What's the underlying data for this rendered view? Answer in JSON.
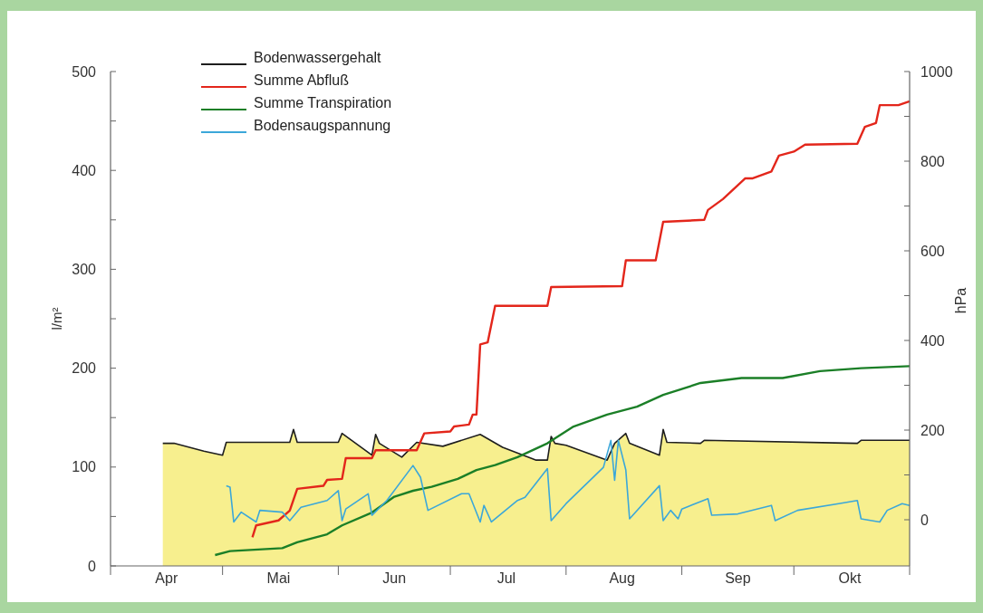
{
  "chart_data": {
    "type": "line",
    "ylabel": "l/m²",
    "y2label": "hPa",
    "xlim": [
      "--04-01",
      "--11-01"
    ],
    "xticks": [
      {
        "value": "--04-01",
        "label": null
      },
      {
        "value": "--04-16",
        "label": "Apr"
      },
      {
        "value": "--05-01",
        "label": null
      },
      {
        "value": "--05-16",
        "label": "Mai"
      },
      {
        "value": "--06-01",
        "label": null
      },
      {
        "value": "--06-16",
        "label": "Jun"
      },
      {
        "value": "--07-01",
        "label": null
      },
      {
        "value": "--07-16",
        "label": "Jul"
      },
      {
        "value": "--08-01",
        "label": null
      },
      {
        "value": "--08-16",
        "label": "Aug"
      },
      {
        "value": "--09-01",
        "label": null
      },
      {
        "value": "--09-16",
        "label": "Sep"
      },
      {
        "value": "--10-01",
        "label": null
      },
      {
        "value": "--10-16",
        "label": "Okt"
      },
      {
        "value": "--11-01",
        "label": null
      }
    ],
    "ylim": [
      0,
      500
    ],
    "yticks": [
      0,
      {
        "value": 50,
        "label": null
      },
      100,
      {
        "value": 150,
        "label": null
      },
      200,
      {
        "value": 250,
        "label": null
      },
      300,
      {
        "value": 350,
        "label": null
      },
      400,
      {
        "value": 450,
        "label": null
      },
      500
    ],
    "y2lim": [
      -103,
      1000
    ],
    "y2ticks": [
      0,
      {
        "value": 100,
        "label": null
      },
      200,
      {
        "value": 300,
        "label": null
      },
      400,
      {
        "value": 500,
        "label": null
      },
      600,
      {
        "value": 700,
        "label": null
      },
      800,
      {
        "value": 900,
        "label": null
      },
      1000
    ],
    "legend": "top left",
    "grid": false,
    "line_style": "solid",
    "marker": "none",
    "series": [
      {
        "name": "Bodenwassergehalt",
        "type": "area",
        "color": "#1e1e1e",
        "x": [
          "--04-15",
          "--04-18",
          "--04-26",
          "--05-01",
          "--05-02",
          "--05-19",
          "--05-20",
          "--05-21",
          "--06-01",
          "--06-02",
          "--06-10",
          "--06-11",
          "--06-12",
          "--06-18",
          "--06-22",
          "--06-29",
          "--07-09",
          "--07-15",
          "--07-24",
          "--07-27",
          "--07-28",
          "--07-29",
          "--08-01",
          "--08-12",
          "--08-14",
          "--08-17",
          "--08-18",
          "--08-26",
          "--08-27",
          "--08-28",
          "--09-06",
          "--09-07",
          "--10-18",
          "--10-19",
          "--11-01"
        ],
        "values": [
          124,
          124,
          116,
          112,
          125,
          125,
          138,
          125,
          125,
          134,
          112,
          133,
          124,
          110,
          125,
          121,
          133,
          120,
          107,
          107,
          131,
          124,
          122,
          107,
          124,
          134,
          124,
          112,
          138,
          125,
          124,
          127,
          124,
          127,
          127
        ]
      },
      {
        "name": "Summe Abfluß",
        "color": "#e3261b",
        "x": [
          "--05-09",
          "--05-10",
          "--05-16",
          "--05-19",
          "--05-21",
          "--05-28",
          "--05-29",
          "--06-02",
          "--06-03",
          "--06-10",
          "--06-11",
          "--06-22",
          "--06-24",
          "--07-01",
          "--07-02",
          "--07-06",
          "--07-07",
          "--07-08",
          "--07-09",
          "--07-11",
          "--07-13",
          "--07-27",
          "--07-28",
          "--08-16",
          "--08-17",
          "--08-25",
          "--08-27",
          "--09-07",
          "--09-08",
          "--09-12",
          "--09-18",
          "--09-20",
          "--09-25",
          "--09-27",
          "--10-01",
          "--10-04",
          "--10-18",
          "--10-20",
          "--10-23",
          "--10-24",
          "--10-29",
          "--11-01"
        ],
        "values": [
          29,
          41,
          46,
          56,
          78,
          81,
          87,
          88,
          109,
          109,
          117,
          117,
          134,
          136,
          141,
          143,
          153,
          153,
          224,
          226,
          263,
          263,
          282,
          283,
          309,
          309,
          348,
          350,
          360,
          371,
          392,
          392,
          399,
          415,
          419,
          426,
          427,
          444,
          448,
          466,
          466,
          470
        ]
      },
      {
        "name": "Summe Transpiration",
        "color": "#1b7f27",
        "x": [
          "--04-29",
          "--05-03",
          "--05-17",
          "--05-21",
          "--05-29",
          "--06-02",
          "--06-10",
          "--06-16",
          "--06-21",
          "--06-26",
          "--07-03",
          "--07-08",
          "--07-13",
          "--07-19",
          "--07-27",
          "--08-03",
          "--08-12",
          "--08-20",
          "--08-27",
          "--09-06",
          "--09-17",
          "--09-28",
          "--10-08",
          "--10-19",
          "--11-01"
        ],
        "values": [
          11,
          15,
          18,
          24,
          32,
          41,
          54,
          70,
          76,
          80,
          88,
          97,
          102,
          110,
          124,
          141,
          153,
          161,
          173,
          185,
          190,
          190,
          197,
          200,
          202
        ]
      },
      {
        "name": "Bodensaugspannung",
        "color": "#3ba7d9",
        "axis": "y2",
        "x": [
          "--05-02",
          "--05-03",
          "--05-04",
          "--05-06",
          "--05-10",
          "--05-11",
          "--05-17",
          "--05-19",
          "--05-22",
          "--05-29",
          "--06-01",
          "--06-02",
          "--06-03",
          "--06-09",
          "--06-10",
          "--06-14",
          "--06-21",
          "--06-23",
          "--06-25",
          "--07-04",
          "--07-06",
          "--07-09",
          "--07-10",
          "--07-12",
          "--07-19",
          "--07-21",
          "--07-27",
          "--07-28",
          "--08-01",
          "--08-11",
          "--08-13",
          "--08-14",
          "--08-15",
          "--08-17",
          "--08-18",
          "--08-26",
          "--08-27",
          "--08-29",
          "--08-31",
          "--09-01",
          "--09-08",
          "--09-09",
          "--09-16",
          "--09-25",
          "--09-26",
          "--10-02",
          "--10-13",
          "--10-18",
          "--10-19",
          "--10-24",
          "--10-26",
          "--10-30",
          "--11-01"
        ],
        "values": [
          76,
          73,
          -5,
          17,
          -5,
          21,
          17,
          -2,
          28,
          43,
          65,
          -2,
          24,
          58,
          10,
          43,
          121,
          95,
          21,
          58,
          58,
          -5,
          32,
          -5,
          43,
          50,
          114,
          -2,
          36,
          117,
          177,
          88,
          177,
          111,
          2,
          76,
          -2,
          21,
          2,
          24,
          47,
          10,
          13,
          32,
          -2,
          21,
          36,
          43,
          2,
          -5,
          21,
          36,
          32
        ]
      }
    ]
  }
}
